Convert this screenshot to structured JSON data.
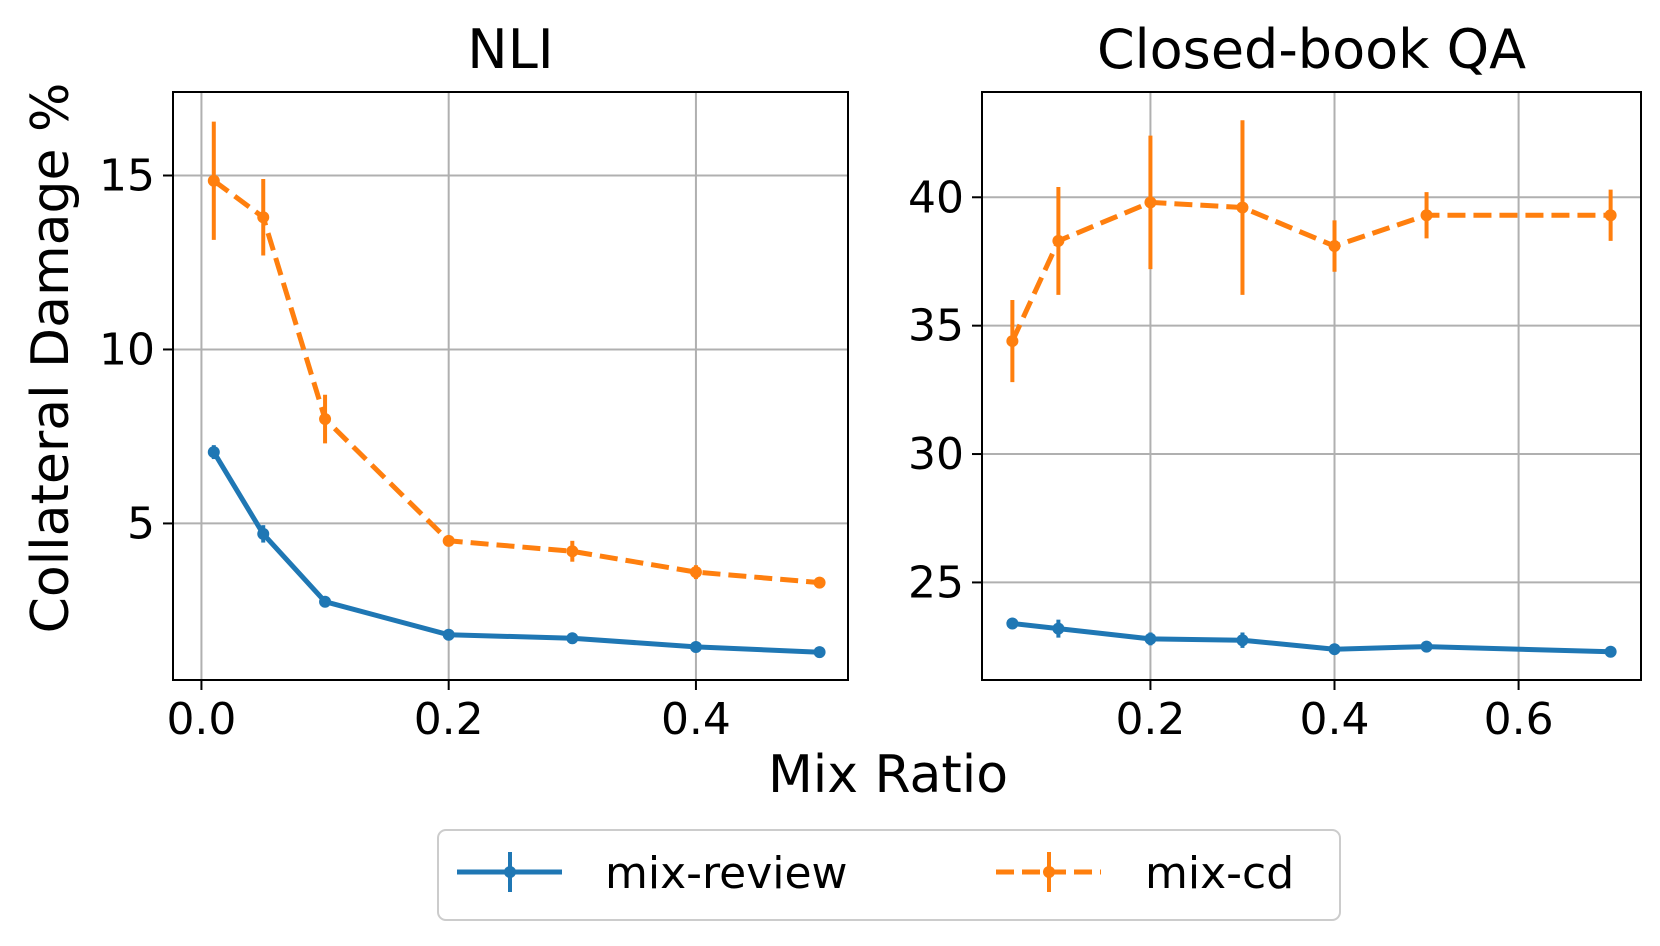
{
  "figure": {
    "ylabel": "Collateral Damage %",
    "xlabel": "Mix Ratio"
  },
  "legend": {
    "items": [
      {
        "label": "mix-review",
        "color": "#1f77b4",
        "style": "solid"
      },
      {
        "label": "mix-cd",
        "color": "#ff7f0e",
        "style": "dashed"
      }
    ]
  },
  "chart_data": [
    {
      "type": "line",
      "title": "NLI",
      "xlim": [
        -0.023,
        0.523
      ],
      "ylim": [
        0.5,
        17.4
      ],
      "xticks": [
        0.0,
        0.2,
        0.4
      ],
      "xtick_labels": [
        "0.0",
        "0.2",
        "0.4"
      ],
      "yticks": [
        5,
        10,
        15
      ],
      "ytick_labels": [
        "5",
        "10",
        "15"
      ],
      "grid": true,
      "series": [
        {
          "name": "mix-review",
          "color": "#1f77b4",
          "dashed": false,
          "x": [
            0.01,
            0.05,
            0.1,
            0.2,
            0.3,
            0.4,
            0.5
          ],
          "y": [
            7.05,
            4.7,
            2.75,
            1.8,
            1.7,
            1.45,
            1.3
          ],
          "err": [
            0.2,
            0.25,
            0.1,
            0.08,
            0.08,
            0.08,
            0.08
          ]
        },
        {
          "name": "mix-cd",
          "color": "#ff7f0e",
          "dashed": true,
          "x": [
            0.01,
            0.05,
            0.1,
            0.2,
            0.3,
            0.4,
            0.5
          ],
          "y": [
            14.85,
            13.8,
            8.0,
            4.5,
            4.2,
            3.6,
            3.3
          ],
          "err": [
            1.7,
            1.1,
            0.7,
            0.15,
            0.3,
            0.2,
            0.15
          ]
        }
      ]
    },
    {
      "type": "line",
      "title": "Closed-book QA",
      "xlim": [
        0.017,
        0.733
      ],
      "ylim": [
        21.2,
        44.1
      ],
      "xticks": [
        0.2,
        0.4,
        0.6
      ],
      "xtick_labels": [
        "0.2",
        "0.4",
        "0.6"
      ],
      "yticks": [
        25,
        30,
        35,
        40
      ],
      "ytick_labels": [
        "25",
        "30",
        "35",
        "40"
      ],
      "grid": true,
      "series": [
        {
          "name": "mix-review",
          "color": "#1f77b4",
          "dashed": false,
          "x": [
            0.05,
            0.1,
            0.2,
            0.3,
            0.4,
            0.5,
            0.7
          ],
          "y": [
            23.4,
            23.2,
            22.8,
            22.75,
            22.4,
            22.5,
            22.3
          ],
          "err": [
            0.15,
            0.35,
            0.25,
            0.3,
            0.15,
            0.15,
            0.15
          ]
        },
        {
          "name": "mix-cd",
          "color": "#ff7f0e",
          "dashed": true,
          "x": [
            0.05,
            0.1,
            0.2,
            0.3,
            0.4,
            0.5,
            0.7
          ],
          "y": [
            34.4,
            38.3,
            39.8,
            39.6,
            38.1,
            39.3,
            39.3
          ],
          "err": [
            1.6,
            2.1,
            2.6,
            3.4,
            1.0,
            0.9,
            1.0
          ]
        }
      ]
    }
  ]
}
